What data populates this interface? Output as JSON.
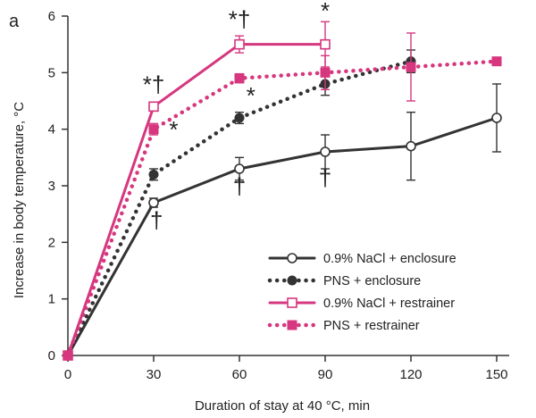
{
  "chart_data": {
    "type": "line",
    "panel_label": "a",
    "xlabel": "Duration of stay at 40 °C, min",
    "ylabel": "Increase in body temperature, °C",
    "x_ticks": [
      "0",
      "30",
      "60",
      "90",
      "120",
      "150"
    ],
    "y_ticks": [
      "0",
      "1",
      "2",
      "3",
      "4",
      "5",
      "6"
    ],
    "xlim": [
      0,
      150
    ],
    "ylim": [
      0,
      6
    ],
    "grid": false,
    "legend_position": "bottom-right",
    "series": [
      {
        "name": "0.9% NaCl + enclosure",
        "color": "#333333",
        "line_style": "solid",
        "marker": "open-circle",
        "x": [
          0,
          30,
          60,
          90,
          120,
          150
        ],
        "y": [
          0,
          2.7,
          3.3,
          3.6,
          3.7,
          4.2
        ],
        "error": [
          0,
          0.08,
          0.2,
          0.3,
          0.6,
          0.6
        ]
      },
      {
        "name": "PNS + enclosure",
        "color": "#333333",
        "line_style": "dotted",
        "marker": "filled-circle",
        "x": [
          0,
          30,
          60,
          90,
          120
        ],
        "y": [
          0,
          3.2,
          4.2,
          4.8,
          5.2
        ],
        "error": [
          0,
          0.1,
          0.1,
          0.2,
          0.2
        ]
      },
      {
        "name": "0.9% NaCl + restrainer",
        "color": "#d6377f",
        "line_style": "solid",
        "marker": "open-square",
        "x": [
          0,
          30,
          60,
          90
        ],
        "y": [
          0,
          4.4,
          5.5,
          5.5
        ],
        "error": [
          0,
          0.08,
          0.15,
          0.4
        ]
      },
      {
        "name": "PNS + restrainer",
        "color": "#d6377f",
        "line_style": "dotted",
        "marker": "filled-square",
        "x": [
          0,
          30,
          60,
          90,
          120,
          150
        ],
        "y": [
          0,
          4.0,
          4.9,
          5.0,
          5.1,
          5.2
        ],
        "error": [
          0,
          0.1,
          0.08,
          0.3,
          0.6,
          0
        ]
      }
    ],
    "annotations": [
      {
        "text": "*†",
        "x": 30,
        "y": 4.65
      },
      {
        "text": "*",
        "x": 37,
        "y": 3.85
      },
      {
        "text": "†",
        "x": 31,
        "y": 2.25
      },
      {
        "text": "*†",
        "x": 60,
        "y": 5.8
      },
      {
        "text": "*",
        "x": 64,
        "y": 4.45
      },
      {
        "text": "†",
        "x": 60,
        "y": 2.85
      },
      {
        "text": "*",
        "x": 90,
        "y": 5.95
      },
      {
        "text": "†",
        "x": 90,
        "y": 3.0
      }
    ]
  }
}
